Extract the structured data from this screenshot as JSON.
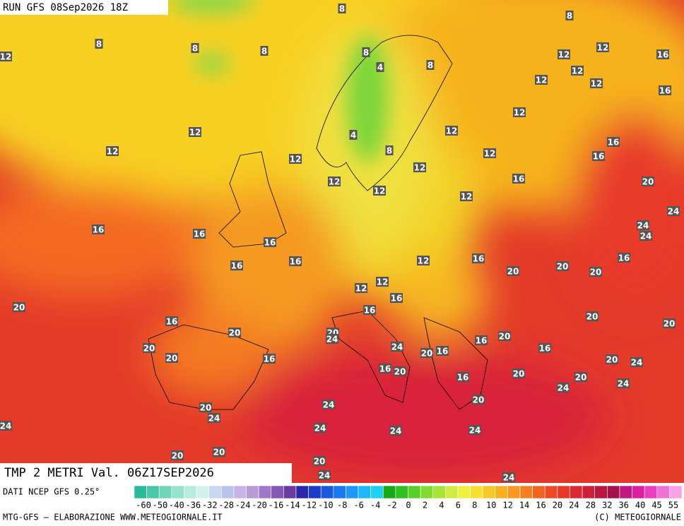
{
  "header": {
    "run": "RUN GFS 08Sep2026 18Z"
  },
  "title": "TMP 2 METRI Val. 06Z17SEP2026",
  "source": "DATI NCEP GFS 0.25°",
  "scale": {
    "labels": [
      -60,
      -50,
      -40,
      -36,
      -32,
      -28,
      -24,
      -20,
      -16,
      -14,
      -12,
      -10,
      -8,
      -6,
      -4,
      -2,
      0,
      2,
      4,
      6,
      8,
      10,
      12,
      14,
      16,
      20,
      24,
      28,
      32,
      36,
      40,
      45,
      55
    ]
  },
  "footer": {
    "left": "MTG-GFS — ELABORAZIONE WWW.METEOGIORNALE.IT",
    "right": "(C) METEOGIORNALE"
  },
  "map": {
    "labels": [
      12,
      8,
      8,
      8,
      8,
      8,
      4,
      8,
      8,
      12,
      12,
      16,
      12,
      12,
      12,
      16,
      12,
      12,
      4,
      8,
      12,
      16,
      16,
      12,
      12,
      12,
      12,
      16,
      20,
      12,
      12,
      12,
      24,
      16,
      16,
      16,
      24,
      24,
      16,
      16,
      12,
      16,
      20,
      20,
      20,
      16,
      20,
      12,
      12,
      16,
      16,
      20,
      20,
      16,
      20,
      20,
      24,
      20,
      16,
      16,
      20,
      20,
      16,
      24,
      20,
      16,
      20,
      24,
      16,
      20,
      16,
      20,
      20,
      24,
      24,
      24,
      20,
      24,
      20,
      24,
      24,
      24,
      24,
      20,
      20,
      20,
      24,
      24
    ]
  }
}
